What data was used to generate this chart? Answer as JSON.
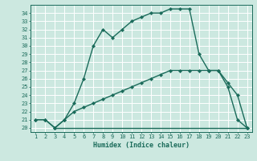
{
  "xlabel": "Humidex (Indice chaleur)",
  "bg_color": "#cce8e0",
  "grid_color": "#ffffff",
  "line_color": "#1a6b5a",
  "ylim": [
    19.5,
    35.0
  ],
  "xlim": [
    0.5,
    23.5
  ],
  "yticks": [
    20,
    21,
    22,
    23,
    24,
    25,
    26,
    27,
    28,
    29,
    30,
    31,
    32,
    33,
    34
  ],
  "xticks": [
    1,
    2,
    3,
    4,
    5,
    6,
    7,
    8,
    9,
    10,
    11,
    12,
    13,
    14,
    15,
    16,
    17,
    18,
    19,
    20,
    21,
    22,
    23
  ],
  "line1_x": [
    1,
    2,
    3,
    4,
    5,
    6,
    7,
    8,
    9,
    10,
    11,
    12,
    13,
    14,
    15,
    16,
    17,
    18,
    19,
    20,
    21,
    22,
    23
  ],
  "line1_y": [
    21,
    21,
    20,
    21,
    23,
    26,
    30,
    32,
    31,
    32,
    33,
    33.5,
    34,
    34,
    34.5,
    34.5,
    34.5,
    29,
    27,
    27,
    25,
    21,
    20
  ],
  "line2_x": [
    1,
    2,
    3,
    4,
    5,
    6,
    7,
    8,
    9,
    10,
    11,
    12,
    13,
    14,
    15,
    16,
    17,
    18,
    19,
    20,
    21,
    22,
    23
  ],
  "line2_y": [
    21,
    21,
    20,
    21,
    22,
    22.5,
    23,
    23.5,
    24,
    24.5,
    25,
    25.5,
    26,
    26.5,
    27,
    27,
    27,
    27,
    27,
    27,
    25.5,
    24,
    20
  ],
  "line3_x": [
    3,
    23
  ],
  "line3_y": [
    20,
    20
  ],
  "marker": "D",
  "markersize": 2.2,
  "linewidth": 1.0,
  "tick_fontsize": 5.0,
  "xlabel_fontsize": 6.0
}
